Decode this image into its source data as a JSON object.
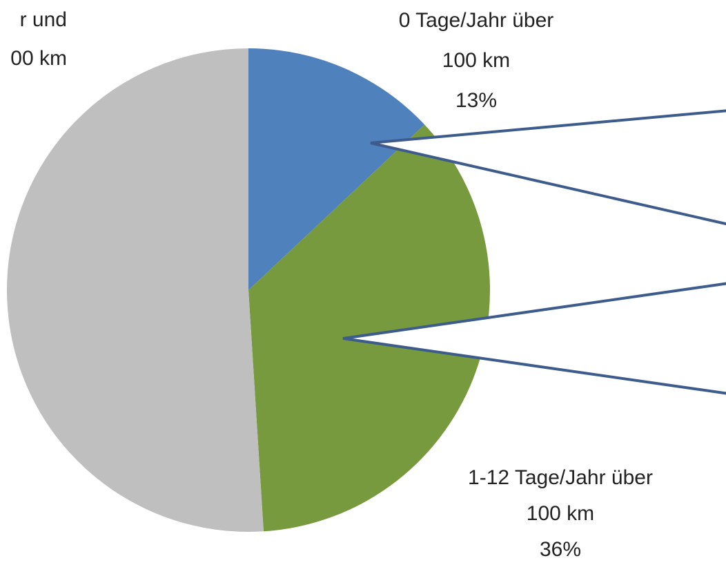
{
  "chart_data": {
    "type": "pie",
    "label_lines": [
      [
        "0 Tage/Jahr über",
        "100 km"
      ],
      [
        "1-12 Tage/Jahr über",
        "100 km"
      ],
      [
        "r und",
        "00 km"
      ]
    ],
    "values": [
      13,
      36,
      51
    ],
    "value_labels": [
      "13%",
      "36%",
      null
    ],
    "colors": [
      "#4f81bd",
      "#779a3e",
      "#bfbfbf"
    ]
  }
}
